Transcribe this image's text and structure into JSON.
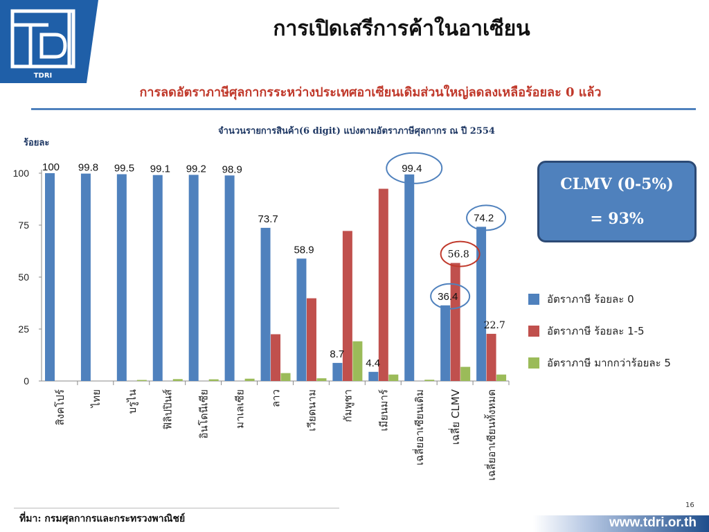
{
  "slide": {
    "title": "การเปิดเสรีการค้าในอาเซียน",
    "subtitle": "การลดอัตราภาษีศุลกากรระหว่างประเทศอาเซียนเดิมส่วนใหญ่ลดลงเหลือร้อยละ 0 แล้ว",
    "source": "ที่มา: กรมศุลกากรและกระทรวงพาณิชย์",
    "page_number": "16",
    "website": "www.tdri.or.th",
    "logo_text": "TDRI"
  },
  "clmv_box": {
    "line1": "CLMV (0-5%)",
    "line2": "= 93%"
  },
  "colors": {
    "blue": "#4f81bd",
    "red": "#c0504d",
    "green": "#9bbb59",
    "highlight_blue": "#4f81bd",
    "highlight_red": "#c0392b"
  },
  "chart_data": {
    "type": "bar",
    "title": "จำนวนรายการสินค้า(6 digit) แบ่งตามอัตราภาษีศุลกากร ณ ปี 2554",
    "ylabel": "ร้อยละ",
    "ylim": [
      0,
      100
    ],
    "yticks": [
      0,
      25,
      50,
      75,
      100
    ],
    "categories": [
      "สิงคโปร์",
      "ไทย",
      "บรูไน",
      "ฟิลิปปินส์",
      "อินโดนีเซีย",
      "มาเลเซีย",
      "ลาว",
      "เวียดนาม",
      "กัมพูชา",
      "เมียนมาร์",
      "เฉลี่ยอาเซียนเดิม",
      "เฉลี่ย CLMV",
      "เฉลี่ยอาเซียนทั้งหมด"
    ],
    "series": [
      {
        "name": "อัตราภาษี  ร้อยละ 0",
        "color": "#4f81bd",
        "values": [
          100,
          99.8,
          99.5,
          99.1,
          99.2,
          98.9,
          73.7,
          58.9,
          8.7,
          4.4,
          99.4,
          36.4,
          74.2
        ]
      },
      {
        "name": "อัตราภาษี  ร้อยละ 1-5",
        "color": "#c0504d",
        "values": [
          0,
          0,
          0,
          0,
          0,
          0,
          22.5,
          39.8,
          72.2,
          92.5,
          0,
          56.8,
          22.7
        ]
      },
      {
        "name": "อัตราภาษี  มากกว่าร้อยละ 5",
        "color": "#9bbb59",
        "values": [
          0,
          0,
          0.5,
          0.9,
          0.8,
          1.1,
          3.8,
          1.3,
          19.1,
          3.1,
          0.6,
          6.8,
          3.1
        ]
      }
    ],
    "data_labels": [
      {
        "category": "สิงคโปร์",
        "series": 0,
        "text": "100"
      },
      {
        "category": "ไทย",
        "series": 0,
        "text": "99.8"
      },
      {
        "category": "บรูไน",
        "series": 0,
        "text": "99.5"
      },
      {
        "category": "ฟิลิปปินส์",
        "series": 0,
        "text": "99.1"
      },
      {
        "category": "อินโดนีเซีย",
        "series": 0,
        "text": "99.2"
      },
      {
        "category": "มาเลเซีย",
        "series": 0,
        "text": "98.9"
      },
      {
        "category": "ลาว",
        "series": 0,
        "text": "73.7"
      },
      {
        "category": "เวียดนาม",
        "series": 0,
        "text": "58.9"
      },
      {
        "category": "กัมพูชา",
        "series": 0,
        "text": "8.7"
      },
      {
        "category": "เมียนมาร์",
        "series": 0,
        "text": "4.4"
      },
      {
        "category": "เฉลี่ยอาเซียนเดิม",
        "series": 0,
        "text": "99.4"
      },
      {
        "category": "เฉลี่ย CLMV",
        "series": 0,
        "text": "36.4"
      },
      {
        "category": "เฉลี่ย CLMV",
        "series": 1,
        "text": "56.8"
      },
      {
        "category": "เฉลี่ยอาเซียนทั้งหมด",
        "series": 0,
        "text": "74.2"
      },
      {
        "category": "เฉลี่ยอาเซียนทั้งหมด",
        "series": 1,
        "text": "22.7"
      }
    ],
    "highlighted_labels": [
      "99.4",
      "74.2",
      "56.8",
      "36.4"
    ],
    "legend_position": "right",
    "grid": false
  }
}
